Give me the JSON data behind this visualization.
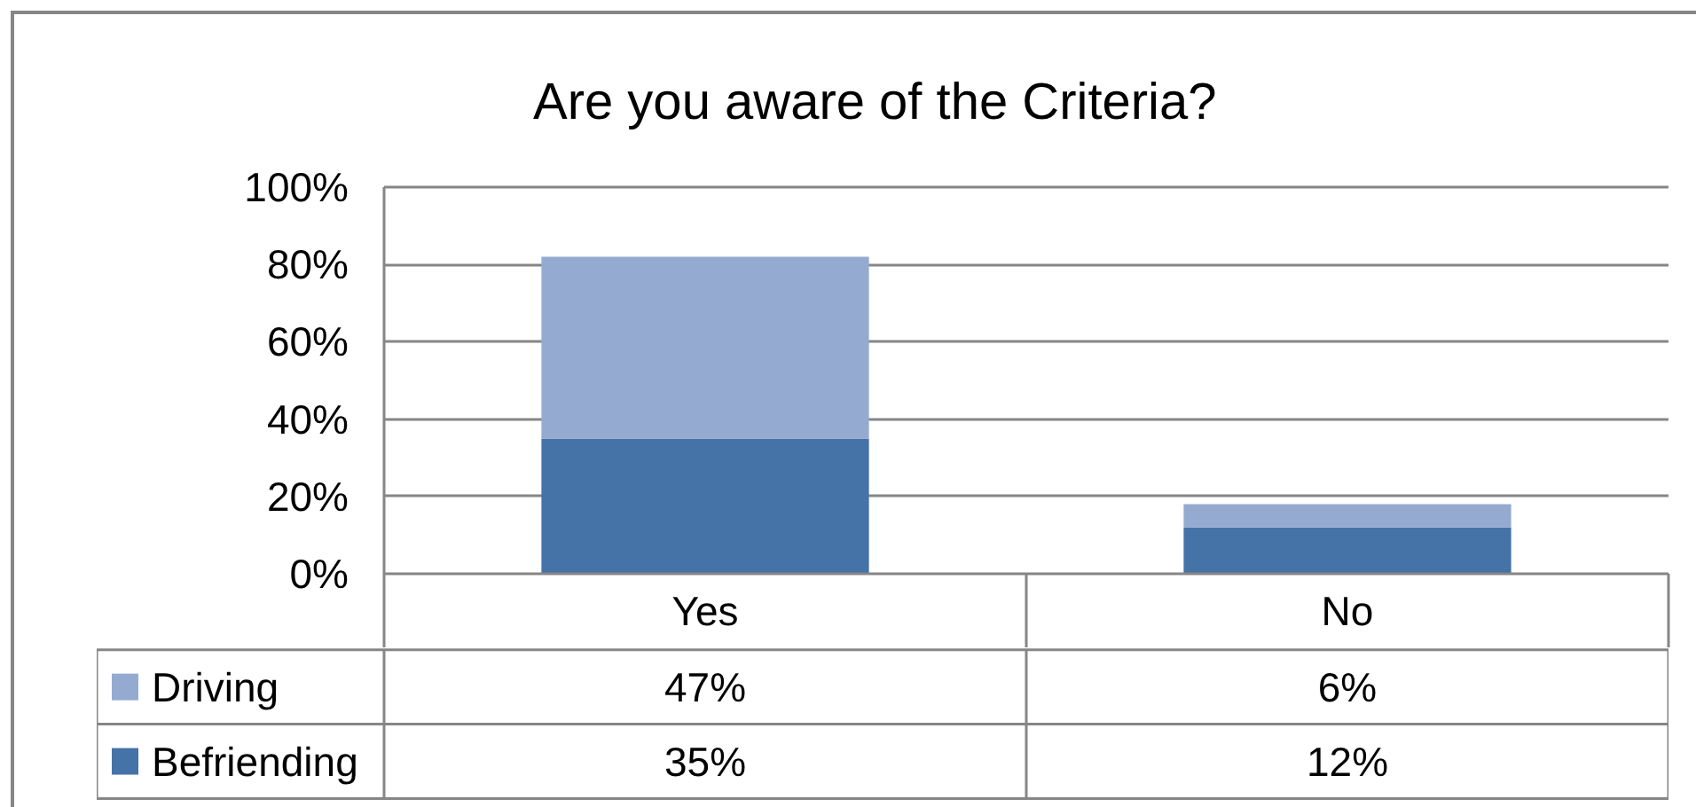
{
  "chart_data": {
    "type": "bar",
    "title": "Are you aware of the Criteria?",
    "categories": [
      "Yes",
      "No"
    ],
    "stacked": true,
    "series": [
      {
        "name": "Befriending",
        "color": "#4572a7",
        "values": [
          35,
          12
        ],
        "value_labels": [
          "35%",
          "12%"
        ]
      },
      {
        "name": "Driving",
        "color": "#95aad0",
        "values": [
          47,
          6
        ],
        "value_labels": [
          "47%",
          "6%"
        ]
      }
    ],
    "ylim": [
      0,
      100
    ],
    "yticks": [
      {
        "value": 0,
        "label": "0%"
      },
      {
        "value": 20,
        "label": "20%"
      },
      {
        "value": 40,
        "label": "40%"
      },
      {
        "value": 60,
        "label": "60%"
      },
      {
        "value": 80,
        "label": "80%"
      },
      {
        "value": 100,
        "label": "100%"
      }
    ],
    "grid": "y",
    "legend": "bottom"
  }
}
